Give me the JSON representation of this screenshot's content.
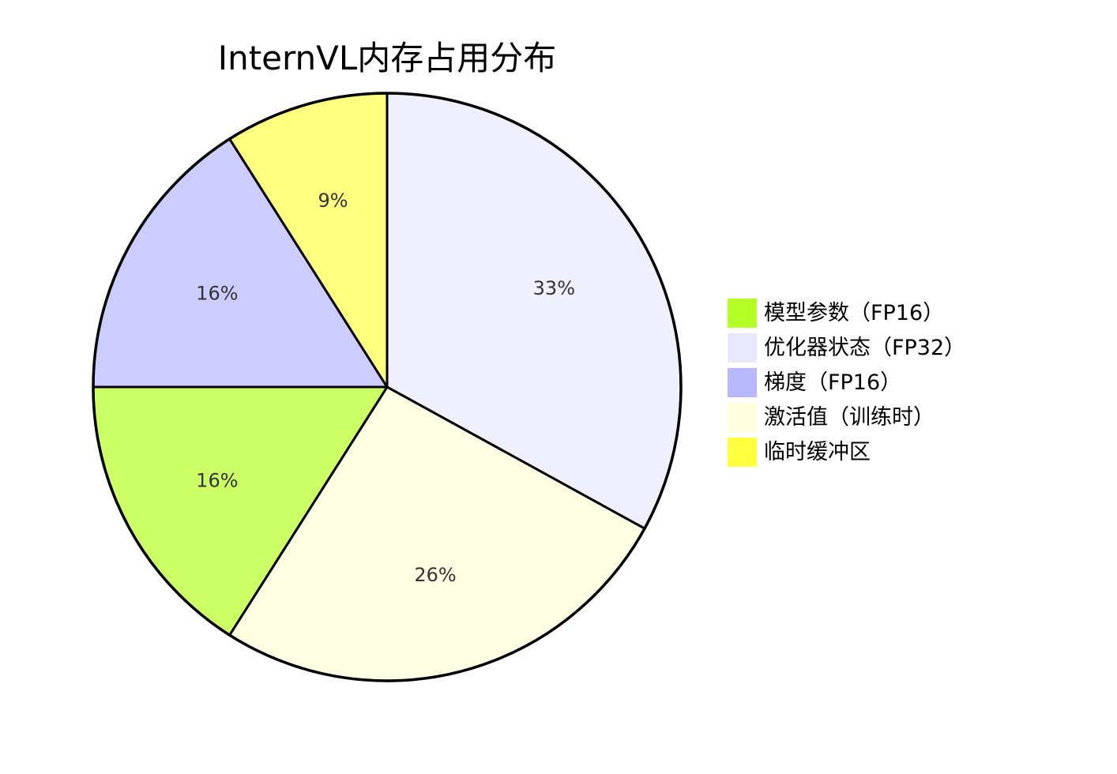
{
  "chart_data": {
    "type": "pie",
    "title": "InternVL内存占用分布",
    "start_angle_deg": 0,
    "direction": "clockwise",
    "legend_position": "right",
    "slices": [
      {
        "label": "优化器状态（FP32）",
        "value": 33,
        "display": "33%",
        "color": "#EFEFFD"
      },
      {
        "label": "激活值（训练时）",
        "value": 26,
        "display": "26%",
        "color": "#FFFFE3"
      },
      {
        "label": "模型参数（FP16）",
        "value": 16,
        "display": "16%",
        "color": "#CCFF66"
      },
      {
        "label": "梯度（FP16）",
        "value": 16,
        "display": "16%",
        "color": "#CCCCFF"
      },
      {
        "label": "临时缓冲区",
        "value": 9,
        "display": "9%",
        "color": "#FFFF80"
      }
    ],
    "legend": [
      {
        "label": "模型参数（FP16）",
        "color": "#B3FF26"
      },
      {
        "label": "优化器状态（FP32）",
        "color": "#E8E8FC"
      },
      {
        "label": "梯度（FP16）",
        "color": "#B8B8FF"
      },
      {
        "label": "激活值（训练时）",
        "color": "#FFFFE0"
      },
      {
        "label": "临时缓冲区",
        "color": "#FFFF40"
      }
    ]
  }
}
